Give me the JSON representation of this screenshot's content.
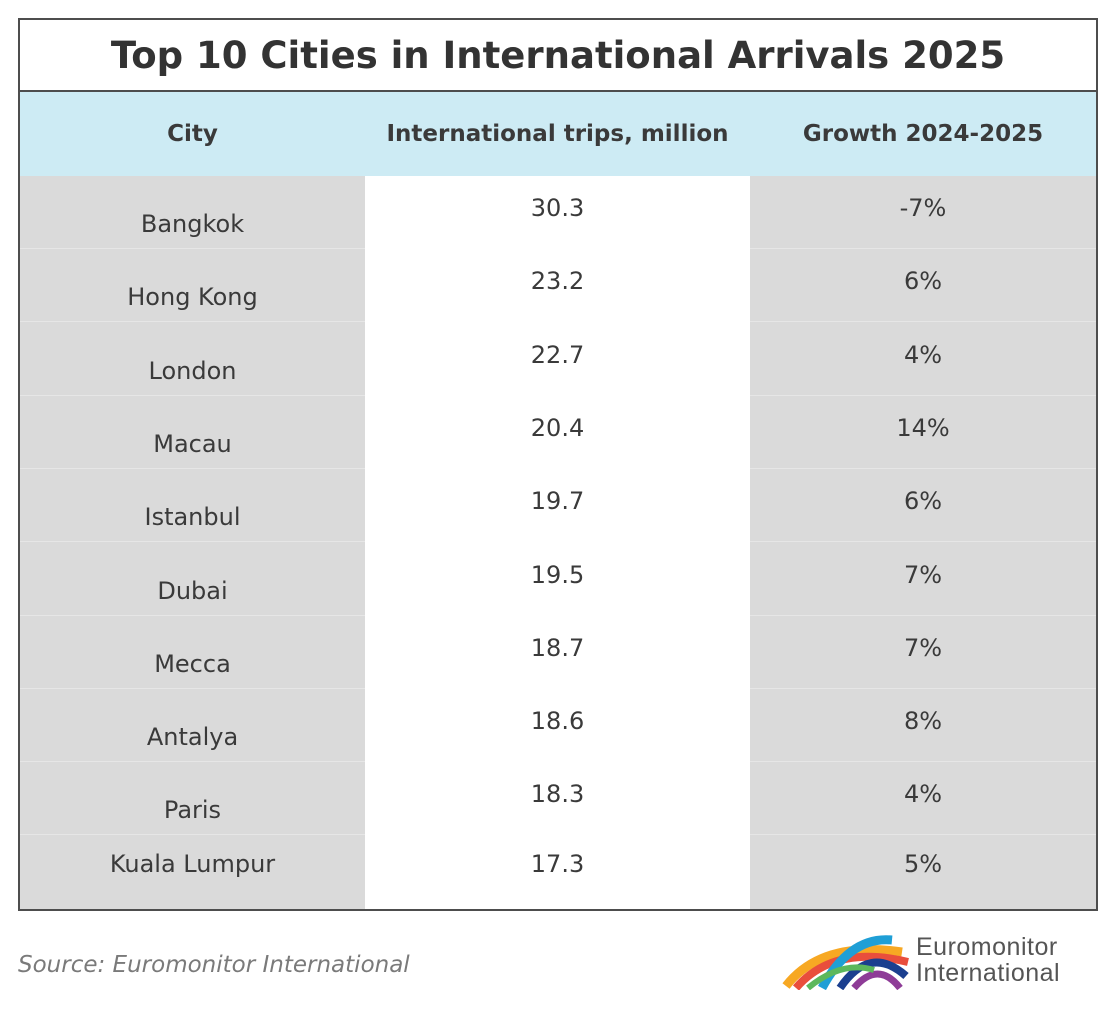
{
  "title": "Top 10 Cities in International Arrivals 2025",
  "columns": [
    "City",
    "International trips, million",
    "Growth 2024-2025"
  ],
  "rows": [
    {
      "city": "Bangkok",
      "trips": "30.3",
      "growth": "-7%"
    },
    {
      "city": "Hong Kong",
      "trips": "23.2",
      "growth": "6%"
    },
    {
      "city": "London",
      "trips": "22.7",
      "growth": "4%"
    },
    {
      "city": "Macau",
      "trips": "20.4",
      "growth": "14%"
    },
    {
      "city": "Istanbul",
      "trips": "19.7",
      "growth": "6%"
    },
    {
      "city": "Dubai",
      "trips": "19.5",
      "growth": "7%"
    },
    {
      "city": "Mecca",
      "trips": "18.7",
      "growth": "7%"
    },
    {
      "city": "Antalya",
      "trips": "18.6",
      "growth": "8%"
    },
    {
      "city": "Paris",
      "trips": "18.3",
      "growth": "4%"
    },
    {
      "city": "Kuala Lumpur",
      "trips": "17.3",
      "growth": "5%"
    }
  ],
  "source": "Source: Euromonitor International",
  "logo": {
    "line1": "Euromonitor",
    "line2": "International",
    "icon": "euromonitor-arcs-icon"
  },
  "colors": {
    "header_bg": "#cdebf4",
    "shaded_column": "#dadada",
    "border": "#4d4d4d"
  },
  "chart_data": {
    "type": "table",
    "title": "Top 10 Cities in International Arrivals 2025",
    "columns": [
      "City",
      "International trips, million",
      "Growth 2024-2025"
    ],
    "cells": [
      [
        "Bangkok",
        30.3,
        "-7%"
      ],
      [
        "Hong Kong",
        23.2,
        "6%"
      ],
      [
        "London",
        22.7,
        "4%"
      ],
      [
        "Macau",
        20.4,
        "14%"
      ],
      [
        "Istanbul",
        19.7,
        "6%"
      ],
      [
        "Dubai",
        19.5,
        "7%"
      ],
      [
        "Mecca",
        18.7,
        "7%"
      ],
      [
        "Antalya",
        18.6,
        "8%"
      ],
      [
        "Paris",
        18.3,
        "4%"
      ],
      [
        "Kuala Lumpur",
        17.3,
        "5%"
      ]
    ]
  }
}
